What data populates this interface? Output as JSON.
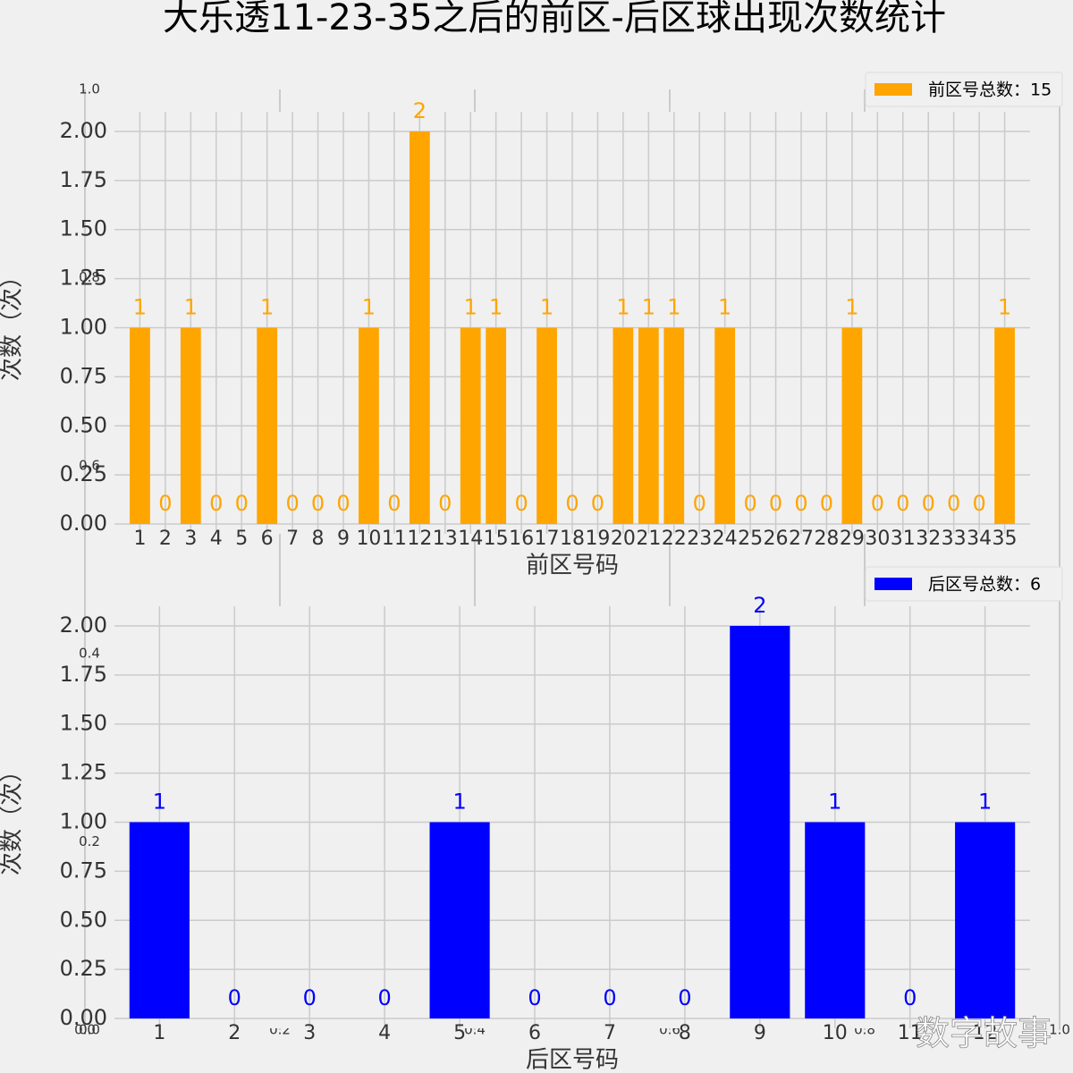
{
  "title": "大乐透11-23-35之后的前区-后区球出现次数统计",
  "watermark": "数字故事",
  "chart_data": [
    {
      "type": "axes",
      "xlim": [
        0,
        1
      ],
      "ylim": [
        0,
        1
      ],
      "xticks": [
        {
          "value": 0,
          "label": "0.0"
        },
        {
          "value": 0.2,
          "label": "0.2"
        },
        {
          "value": 0.4,
          "label": "0.4"
        },
        {
          "value": 0.6,
          "label": "0.6"
        },
        {
          "value": 0.8,
          "label": "0.8"
        },
        {
          "value": 1,
          "label": "1.0"
        }
      ],
      "yticks": [
        {
          "value": 0,
          "label": "0.0"
        },
        {
          "value": 0.2,
          "label": "0.2"
        },
        {
          "value": 0.4,
          "label": "0.4"
        },
        {
          "value": 0.6,
          "label": "0.6"
        },
        {
          "value": 0.8,
          "label": "0.8"
        },
        {
          "value": 1,
          "label": "1.0"
        }
      ],
      "grid": true
    },
    {
      "type": "bar",
      "xlabel": "前区号码",
      "ylabel": "次数（次）",
      "legend": "upper right",
      "x": [
        1,
        2,
        3,
        4,
        5,
        6,
        7,
        8,
        9,
        10,
        11,
        12,
        13,
        14,
        15,
        16,
        17,
        18,
        19,
        20,
        21,
        22,
        23,
        24,
        25,
        26,
        27,
        28,
        29,
        30,
        31,
        32,
        33,
        34,
        35
      ],
      "series": [
        {
          "name": "前区号总数：15",
          "color": "#ffa500",
          "values": [
            1,
            0,
            1,
            0,
            0,
            1,
            0,
            0,
            0,
            1,
            0,
            2,
            0,
            1,
            1,
            0,
            1,
            0,
            0,
            1,
            1,
            1,
            0,
            1,
            0,
            0,
            0,
            0,
            1,
            0,
            0,
            0,
            0,
            0,
            1
          ]
        }
      ],
      "xlim": [
        0,
        36
      ],
      "ylim": [
        -0.05,
        2.1
      ],
      "yticks": [
        {
          "value": 0,
          "label": "0.00"
        },
        {
          "value": 0.25,
          "label": "0.25"
        },
        {
          "value": 0.5,
          "label": "0.50"
        },
        {
          "value": 0.75,
          "label": "0.75"
        },
        {
          "value": 1,
          "label": "1.00"
        },
        {
          "value": 1.25,
          "label": "1.25"
        },
        {
          "value": 1.5,
          "label": "1.50"
        },
        {
          "value": 1.75,
          "label": "1.75"
        },
        {
          "value": 2,
          "label": "2.00"
        }
      ],
      "grid": true
    },
    {
      "type": "bar",
      "xlabel": "后区号码",
      "ylabel": "次数（次）",
      "legend": "upper right",
      "x": [
        1,
        2,
        3,
        4,
        5,
        6,
        7,
        8,
        9,
        10,
        11,
        12
      ],
      "series": [
        {
          "name": "后区号总数：6",
          "color": "#0000ff",
          "values": [
            1,
            0,
            0,
            0,
            1,
            0,
            0,
            0,
            2,
            1,
            0,
            1
          ]
        }
      ],
      "xlim": [
        0.4,
        12.6
      ],
      "ylim": [
        -0.05,
        2.1
      ],
      "yticks": [
        {
          "value": 0,
          "label": "0.00"
        },
        {
          "value": 0.25,
          "label": "0.25"
        },
        {
          "value": 0.5,
          "label": "0.50"
        },
        {
          "value": 0.75,
          "label": "0.75"
        },
        {
          "value": 1,
          "label": "1.00"
        },
        {
          "value": 1.25,
          "label": "1.25"
        },
        {
          "value": 1.5,
          "label": "1.50"
        },
        {
          "value": 1.75,
          "label": "1.75"
        },
        {
          "value": 2,
          "label": "2.00"
        }
      ],
      "grid": true
    }
  ]
}
